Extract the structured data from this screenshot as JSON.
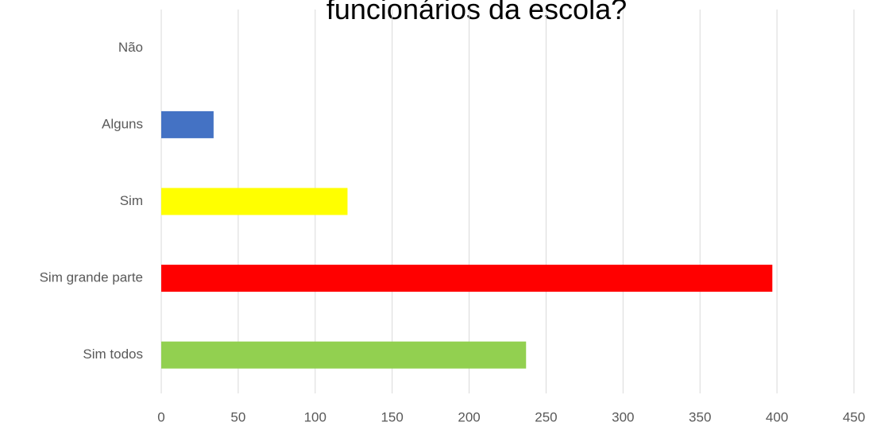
{
  "chart_data": {
    "type": "hbar",
    "title": "funcionários da escola?",
    "categories": [
      "Não",
      "Alguns",
      "Sim",
      "Sim grande parte",
      "Sim todos"
    ],
    "values": [
      0,
      34,
      121,
      397,
      237
    ],
    "colors": [
      null,
      "#4472c4",
      "#ffff00",
      "#ff0000",
      "#92d050"
    ],
    "xlim": [
      0,
      450
    ],
    "xticks": [
      0,
      50,
      100,
      150,
      200,
      250,
      300,
      350,
      400,
      450
    ],
    "grid": true
  }
}
